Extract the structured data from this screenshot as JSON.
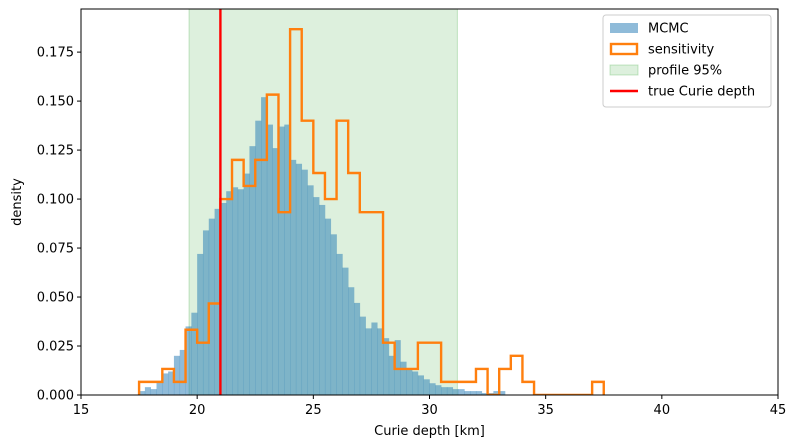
{
  "chart_data": {
    "type": "histogram",
    "xlabel": "Curie depth [km]",
    "ylabel": "density",
    "xlim": [
      15,
      45
    ],
    "ylim": [
      0,
      0.197
    ],
    "xticks": [
      15,
      20,
      25,
      30,
      35,
      40,
      45
    ],
    "yticks": [
      0.0,
      0.025,
      0.05,
      0.075,
      0.1,
      0.125,
      0.15,
      0.175
    ],
    "ytick_labels": [
      "0.000",
      "0.025",
      "0.050",
      "0.075",
      "0.100",
      "0.125",
      "0.150",
      "0.175"
    ],
    "grid": false,
    "legend_position": "top-right",
    "colors": {
      "mcmc": "#1f77b4",
      "sensitivity": "#ff7f0e",
      "profile": "#2ca02c",
      "true_line": "#ff0000"
    },
    "legend": [
      "MCMC",
      "sensitivity",
      "profile 95%",
      "true Curie depth"
    ],
    "profile_95": [
      19.65,
      31.2
    ],
    "true_curie_depth": 21.0,
    "mcmc": {
      "bin_width": 0.25,
      "edges_start": 17.5,
      "densities": [
        0.002,
        0.004,
        0.003,
        0.007,
        0.011,
        0.012,
        0.02,
        0.023,
        0.035,
        0.042,
        0.072,
        0.084,
        0.09,
        0.095,
        0.098,
        0.104,
        0.106,
        0.105,
        0.113,
        0.127,
        0.14,
        0.152,
        0.138,
        0.126,
        0.137,
        0.138,
        0.12,
        0.118,
        0.115,
        0.107,
        0.101,
        0.097,
        0.09,
        0.082,
        0.072,
        0.065,
        0.055,
        0.047,
        0.04,
        0.034,
        0.037,
        0.034,
        0.029,
        0.02,
        0.028,
        0.017,
        0.013,
        0.012,
        0.01,
        0.008,
        0.006,
        0.005,
        0.004,
        0.004,
        0.003,
        0.003,
        0.002,
        0.002,
        0.002,
        0.001,
        0.001,
        0.002,
        0.002
      ]
    },
    "sensitivity": {
      "bin_width": 0.5,
      "edges_start": 17.5,
      "densities": [
        0.0067,
        0.0067,
        0.0133,
        0.0067,
        0.0333,
        0.0267,
        0.0467,
        0.1,
        0.12,
        0.1067,
        0.12,
        0.1533,
        0.0933,
        0.1867,
        0.14,
        0.1133,
        0.1,
        0.14,
        0.1133,
        0.0933,
        0.0933,
        0.0267,
        0.0133,
        0.0133,
        0.0267,
        0.0267,
        0.0067,
        0.0067,
        0.0067,
        0.0133,
        0.0,
        0.0133,
        0.02,
        0.0067,
        0.0,
        0.0,
        0.0,
        0.0,
        0.0,
        0.0067
      ]
    }
  }
}
